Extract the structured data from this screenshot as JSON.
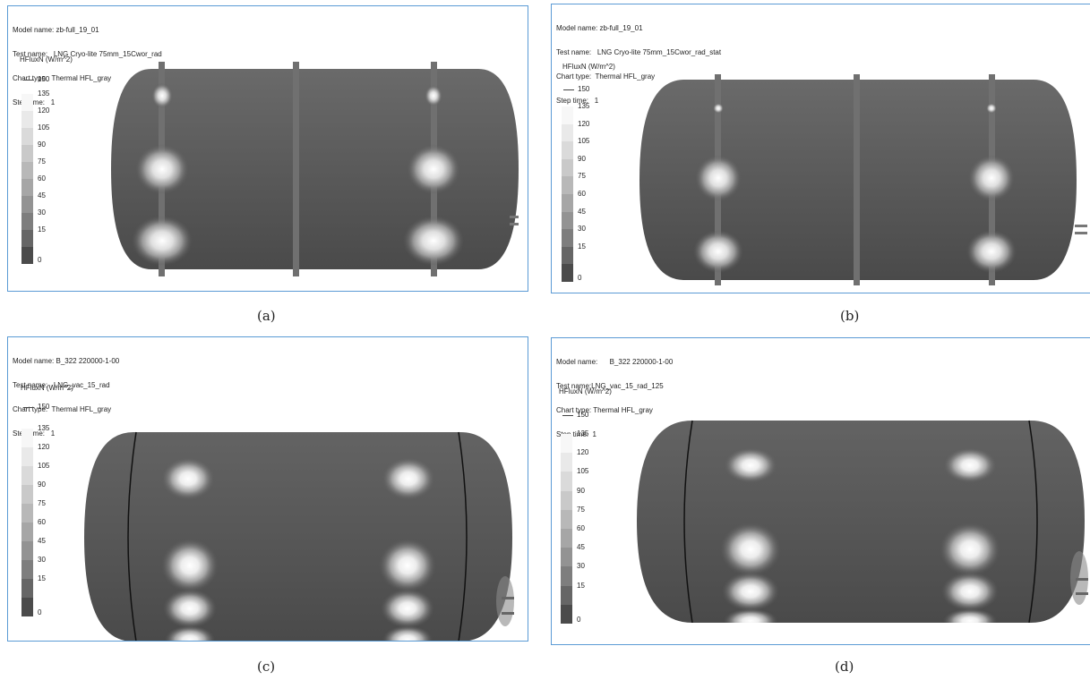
{
  "panels": [
    {
      "id": "a",
      "model_name": "zb-full_19_01",
      "test_name": "LNG Cryo-lite 75mm_15Cwor_rad",
      "chart_type": "Thermal HFL_gray",
      "step_time": "1",
      "caption": "(a)"
    },
    {
      "id": "b",
      "model_name": "zb-full_19_01",
      "test_name": "LNG Cryo-lite 75mm_15Cwor_rad_stat",
      "chart_type": "Thermal HFL_gray",
      "step_time": "1",
      "caption": "(b)"
    },
    {
      "id": "c",
      "model_name": "B_322 220000-1-00",
      "test_name": "LNG_vac_15_rad",
      "chart_type": "Thermal HFL_gray",
      "step_time": "1",
      "caption": "(c)"
    },
    {
      "id": "d",
      "model_name": "B_322 220000-1-00",
      "test_name": "LNG_vac_15_rad_125",
      "chart_type": "Thermal HFL_gray",
      "step_time": "1",
      "caption": "(d)"
    }
  ],
  "labels": {
    "model_name": "Model name:",
    "test_name": "Test name:",
    "chart_type": "Chart type:",
    "step_time": "Step time:"
  },
  "legend": {
    "title": "HFluxN (W/m^2)",
    "ticks": [
      "150",
      "135",
      "120",
      "105",
      "90",
      "75",
      "60",
      "45",
      "30",
      "15",
      "0"
    ],
    "colors": [
      "#f7f7f7",
      "#e9e9e9",
      "#dadada",
      "#c9c9c9",
      "#b8b8b8",
      "#a6a6a6",
      "#939393",
      "#7e7e7e",
      "#666666",
      "#4b4b4b"
    ]
  }
}
